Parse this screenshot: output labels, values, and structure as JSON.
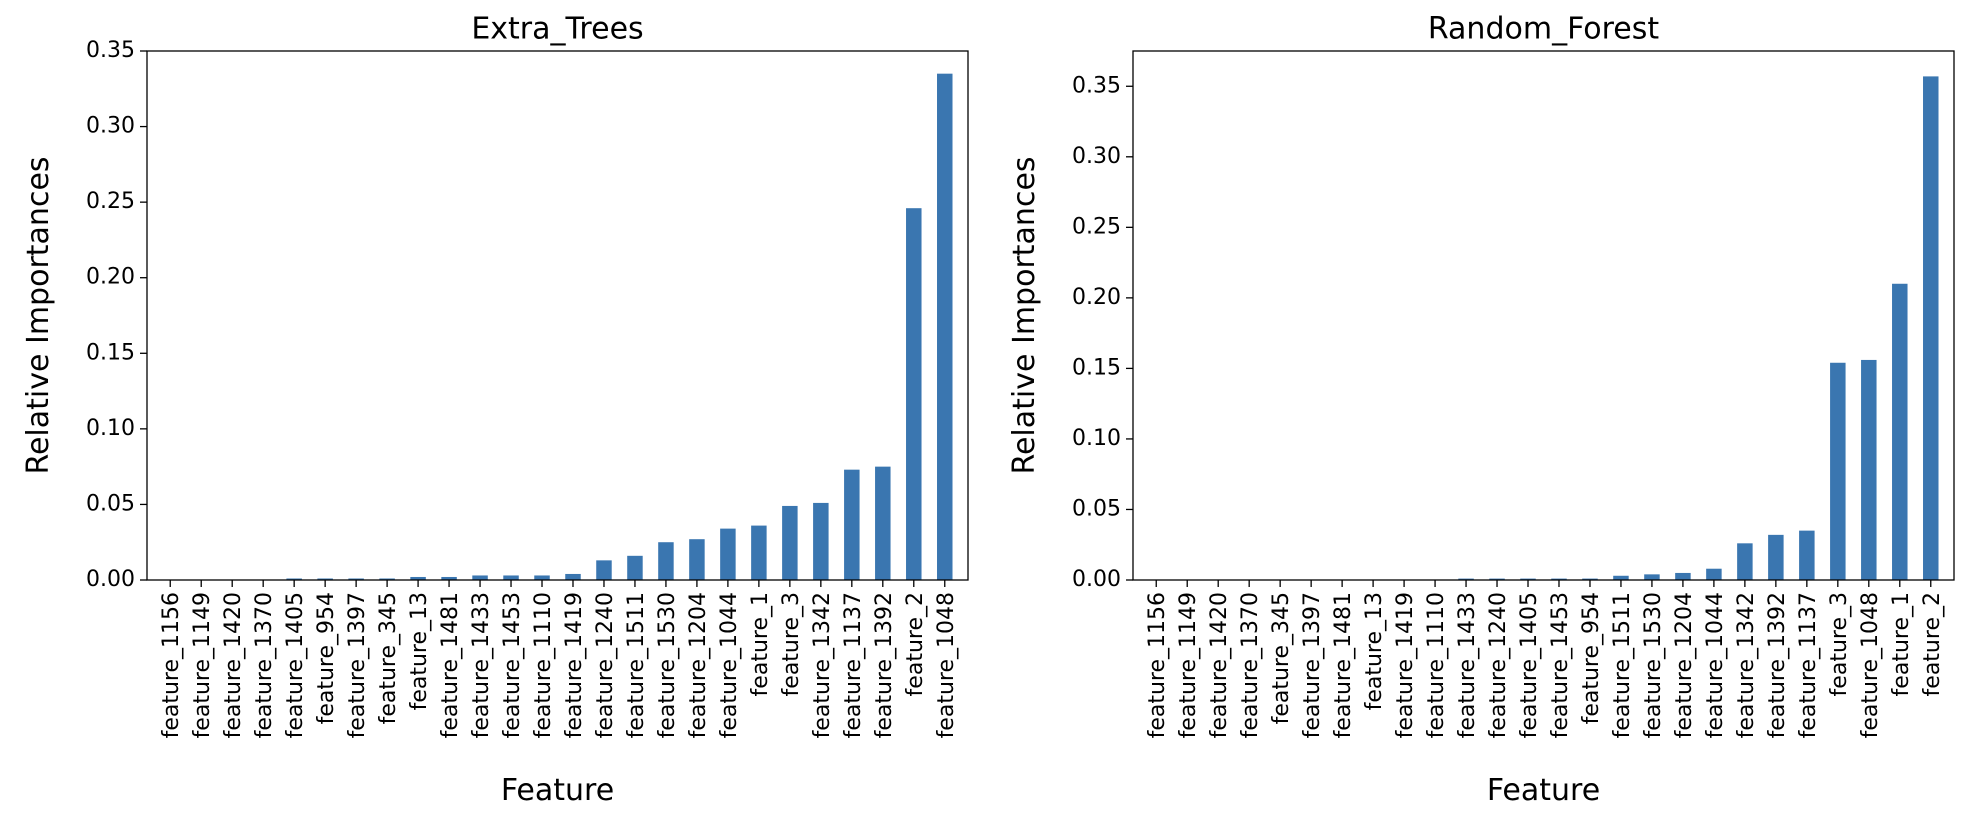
{
  "chart_data": [
    {
      "type": "bar",
      "title": "Extra_Trees",
      "xlabel": "Feature",
      "ylabel": "Relative Importances",
      "ylim": [
        0,
        0.35
      ],
      "yticks": [
        "0.00",
        "0.05",
        "0.10",
        "0.15",
        "0.20",
        "0.25",
        "0.30",
        "0.35"
      ],
      "grid": false,
      "color": "#3a76b0",
      "categories": [
        "feature_1156",
        "feature_1149",
        "feature_1420",
        "feature_1370",
        "feature_1405",
        "feature_954",
        "feature_1397",
        "feature_345",
        "feature_13",
        "feature_1481",
        "feature_1433",
        "feature_1453",
        "feature_1110",
        "feature_1419",
        "feature_1240",
        "feature_1511",
        "feature_1530",
        "feature_1204",
        "feature_1044",
        "feature_1",
        "feature_3",
        "feature_1342",
        "feature_1137",
        "feature_1392",
        "feature_2",
        "feature_1048"
      ],
      "values": [
        0.0,
        0.0,
        0.0,
        0.0,
        0.001,
        0.001,
        0.001,
        0.001,
        0.002,
        0.002,
        0.003,
        0.003,
        0.003,
        0.004,
        0.013,
        0.016,
        0.025,
        0.027,
        0.034,
        0.036,
        0.049,
        0.051,
        0.073,
        0.075,
        0.246,
        0.335
      ]
    },
    {
      "type": "bar",
      "title": "Random_Forest",
      "xlabel": "Feature",
      "ylabel": "Relative Importances",
      "ylim": [
        0,
        0.375
      ],
      "yticks": [
        "0.00",
        "0.05",
        "0.10",
        "0.15",
        "0.20",
        "0.25",
        "0.30",
        "0.35"
      ],
      "grid": false,
      "color": "#3a76b0",
      "categories": [
        "feature_1156",
        "feature_1149",
        "feature_1420",
        "feature_1370",
        "feature_345",
        "feature_1397",
        "feature_1481",
        "feature_13",
        "feature_1419",
        "feature_1110",
        "feature_1433",
        "feature_1240",
        "feature_1405",
        "feature_1453",
        "feature_954",
        "feature_1511",
        "feature_1530",
        "feature_1204",
        "feature_1044",
        "feature_1342",
        "feature_1392",
        "feature_1137",
        "feature_3",
        "feature_1048",
        "feature_1",
        "feature_2"
      ],
      "values": [
        0.0,
        0.0,
        0.0,
        0.0,
        0.0,
        0.0,
        0.0,
        0.0,
        0.0,
        0.0,
        0.001,
        0.001,
        0.001,
        0.001,
        0.001,
        0.003,
        0.004,
        0.005,
        0.008,
        0.026,
        0.032,
        0.035,
        0.154,
        0.156,
        0.21,
        0.357
      ]
    }
  ]
}
